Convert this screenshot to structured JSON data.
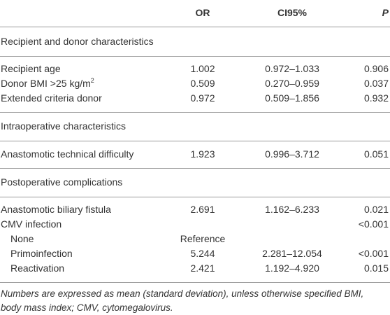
{
  "header": {
    "or": "OR",
    "ci": "CI95%",
    "p": "P"
  },
  "sections": [
    {
      "title": "Recipient and donor characteristics",
      "rows": [
        {
          "label": "Recipient age",
          "or": "1.002",
          "ci": "0.972–1.033",
          "p": "0.906"
        },
        {
          "label": "Donor BMI >25 kg/m",
          "label_sup": "2",
          "or": "0.509",
          "ci": "0.270–0.959",
          "p": "0.037"
        },
        {
          "label": "Extended criteria donor",
          "or": "0.972",
          "ci": "0.509–1.856",
          "p": "0.932"
        }
      ]
    },
    {
      "title": "Intraoperative characteristics",
      "rows": [
        {
          "label": "Anastomotic technical difficulty",
          "or": "1.923",
          "ci": "0.996–3.712",
          "p": "0.051"
        }
      ]
    },
    {
      "title": "Postoperative complications",
      "rows": [
        {
          "label": "Anastomotic biliary fistula",
          "or": "2.691",
          "ci": "1.162–6.233",
          "p": "0.021"
        },
        {
          "label": "CMV infection",
          "p": "<0.001"
        },
        {
          "label": "None",
          "or": "Reference"
        },
        {
          "label": "Primoinfection",
          "or": "5.244",
          "ci": "2.281–12.054",
          "p": "<0.001"
        },
        {
          "label": "Reactivation",
          "or": "2.421",
          "ci": "1.192–4.920",
          "p": "0.015"
        }
      ]
    }
  ],
  "footnote": "Numbers are expressed as mean (standard deviation), unless otherwise specified BMI, body mass index; CMV, cytomegalovirus."
}
